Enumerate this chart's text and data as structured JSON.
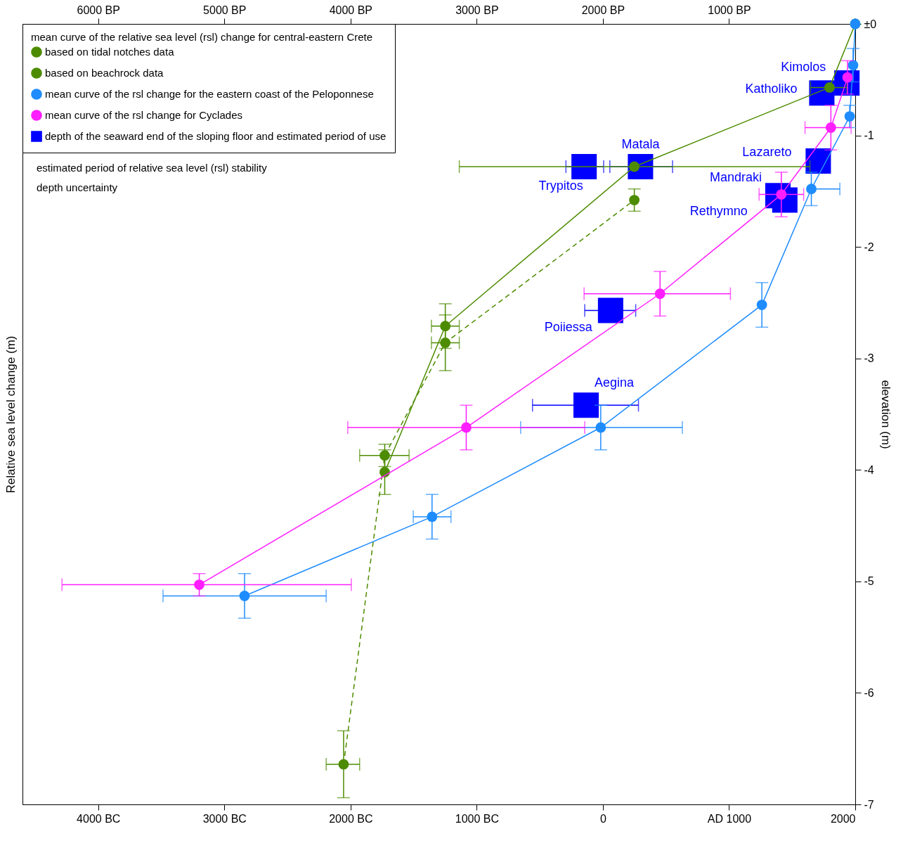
{
  "chart_data": {
    "type": "line",
    "ylabel": "Relative sea level change (m)",
    "y2label": "elevation (m)",
    "xlim": [
      -4600,
      2000
    ],
    "xticks": [
      {
        "value": -4000,
        "label": "4000 BC"
      },
      {
        "value": -3000,
        "label": "3000 BC"
      },
      {
        "value": -2000,
        "label": "2000 BC"
      },
      {
        "value": -1000,
        "label": "1000 BC"
      },
      0,
      {
        "value": 1000,
        "label": "AD 1000"
      },
      2000
    ],
    "x2lim": [
      6600,
      0
    ],
    "x2ticks": [
      {
        "value": 6000,
        "label": "6000 BP"
      },
      {
        "value": 5000,
        "label": "5000 BP"
      },
      {
        "value": 4000,
        "label": "4000 BP"
      },
      {
        "value": 3000,
        "label": "3000 BP"
      },
      {
        "value": 2000,
        "label": "2000 BP"
      },
      {
        "value": 1000,
        "label": "1000 BP"
      },
      {
        "value": 0,
        "label": null
      }
    ],
    "ylim": [
      -7,
      0
    ],
    "yticks": [
      {
        "value": 0,
        "label": "±0"
      },
      -1,
      -2,
      -3,
      -4,
      -5,
      -6,
      -7
    ],
    "legend": "top left",
    "legend_title": "mean curve of the relative sea level (rsl) change for central-eastern Crete",
    "series": [
      {
        "name": "based on tidal notches data",
        "color": "#4d8c00",
        "marker": "circle",
        "line_style": "solid",
        "x": [
          -1729,
          -1249,
          249,
          1796,
          2000
        ],
        "values": [
          -4.02,
          -2.71,
          -1.28,
          -0.57,
          0
        ],
        "errors": [
          0.2,
          0.2,
          null,
          null,
          null
        ],
        "xerrors": [
          null,
          [
            -1359,
            -1138
          ],
          [
            -1138,
            1641
          ],
          [
            1646,
            1934
          ],
          null
        ]
      },
      {
        "name": "based on beachrock data",
        "color": "#4d8c00",
        "marker": "circle",
        "line_style": "dashed",
        "x": [
          -2055,
          -1729,
          -1249,
          249
        ],
        "values": [
          -6.64,
          -3.87,
          -2.86,
          -1.58
        ],
        "errors": [
          0.3,
          0.1,
          0.25,
          0.1
        ],
        "xerrors": [
          [
            -2193,
            -1928
          ],
          [
            -1928,
            -1536
          ],
          [
            -1359,
            -1138
          ],
          null
        ]
      },
      {
        "name": "mean curve of the rsl change for the eastern coast of the Peloponnese",
        "color": "#1e8cff",
        "marker": "circle",
        "line_style": "solid",
        "x": [
          -2840,
          -1354,
          -17,
          1260,
          1652,
          1956,
          1983,
          2000
        ],
        "values": [
          -5.13,
          -4.42,
          -3.62,
          -2.52,
          -1.48,
          -0.83,
          -0.37,
          0
        ],
        "errors": [
          0.2,
          0.2,
          0.2,
          0.2,
          0.15,
          0.1,
          0.15,
          null
        ],
        "xerrors": [
          [
            -3486,
            -2193
          ],
          [
            -1503,
            -1204
          ],
          [
            -652,
            630
          ],
          null,
          [
            1652,
            1878
          ],
          null,
          null,
          null
        ]
      },
      {
        "name": "mean curve of the rsl change for Cyclades",
        "color": "#ff1eff",
        "marker": "circle",
        "line_style": "solid",
        "x": [
          -3199,
          -1083,
          453,
          1414,
          1807,
          1939
        ],
        "values": [
          -5.03,
          -3.62,
          -2.42,
          -1.53,
          -0.93,
          -0.48
        ],
        "errors": [
          0.1,
          0.2,
          0.2,
          0.2,
          0.2,
          0.15
        ],
        "xerrors": [
          [
            -4287,
            -1994
          ],
          [
            -2022,
            -144
          ],
          [
            -149,
            1011
          ],
          [
            1238,
            1591
          ],
          [
            1602,
            1967
          ],
          null
        ]
      },
      {
        "name": "depth of the seaward end of the sloping floor and estimated period of use",
        "type": "scatter",
        "color": "#0000ff",
        "marker": "square",
        "x": [
          1934,
          1735,
          298,
          -149,
          1707,
          1387,
          1442,
          61,
          -133
        ],
        "values": [
          -0.53,
          -0.62,
          -1.28,
          -1.28,
          -1.23,
          -1.54,
          -1.58,
          -2.57,
          -3.42
        ],
        "xerrors": [
          null,
          null,
          [
            55,
            552
          ],
          [
            -293,
            6
          ],
          null,
          null,
          null,
          [
            -144,
            260
          ],
          [
            -558,
            282
          ]
        ]
      }
    ],
    "annotations": [
      "estimated period of relative sea level (rsl) stability",
      "depth uncertainty",
      {
        "text": "Kimolos",
        "x": 1934,
        "y": -0.53
      },
      {
        "text": "Katholiko",
        "x": 1735,
        "y": -0.62
      },
      {
        "text": "Matala",
        "x": 298,
        "y": -1.28
      },
      {
        "text": "Trypitos",
        "x": -149,
        "y": -1.28
      },
      {
        "text": "Lazareto",
        "x": 1707,
        "y": -1.23
      },
      {
        "text": "Mandraki",
        "x": 1387,
        "y": -1.54
      },
      {
        "text": "Rethymno",
        "x": 1442,
        "y": -1.58
      },
      {
        "text": "Poiiessa",
        "x": 61,
        "y": -2.57
      },
      {
        "text": "Aegina",
        "x": -133,
        "y": -3.42
      }
    ]
  }
}
